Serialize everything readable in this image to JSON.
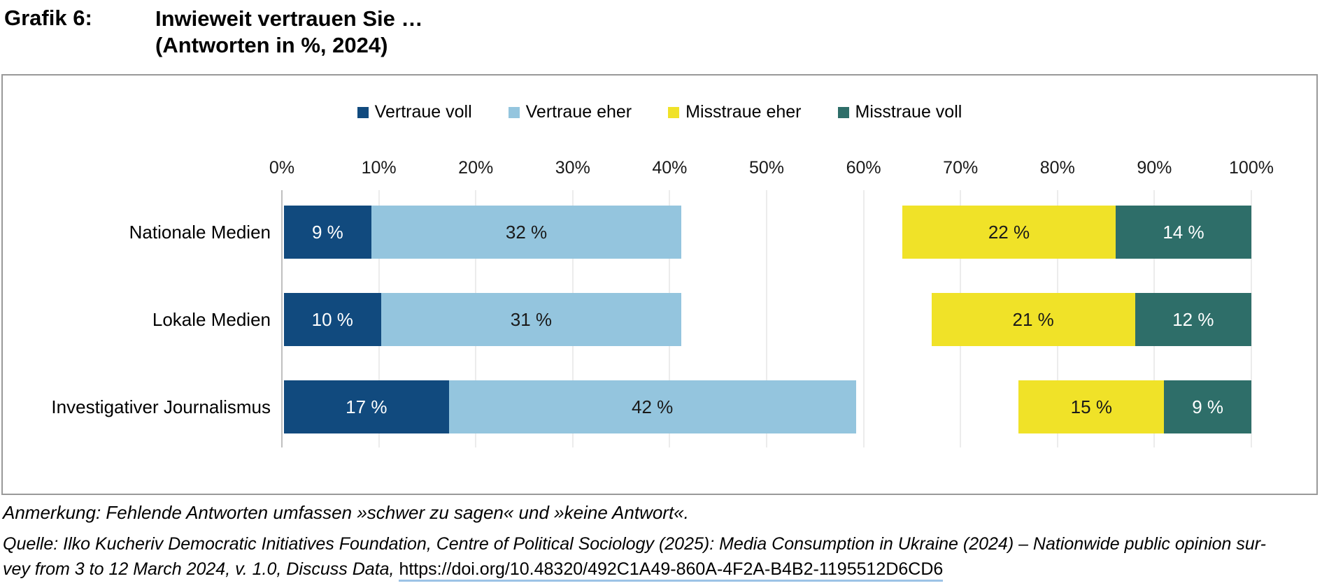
{
  "title": {
    "label": "Grafik 6:",
    "line1": "Inwieweit vertrauen Sie …",
    "line2": "(Antworten in %, 2024)"
  },
  "chart_data": {
    "type": "bar",
    "orientation": "horizontal-stacked",
    "title": "Inwieweit vertrauen Sie … (Antworten in %, 2024)",
    "categories": [
      "Nationale Medien",
      "Lokale Medien",
      "Investigativer Journalismus"
    ],
    "series": [
      {
        "name": "Vertraue voll",
        "color": "#114a7e",
        "text_color": "#ffffff",
        "align": "left",
        "values": [
          9,
          10,
          17
        ]
      },
      {
        "name": "Vertraue eher",
        "color": "#94c5de",
        "text_color": "#1a1a1a",
        "align": "left",
        "values": [
          32,
          31,
          42
        ]
      },
      {
        "name": "Misstraue eher",
        "color": "#f0e228",
        "text_color": "#1a1a1a",
        "align": "right",
        "values": [
          22,
          21,
          15
        ]
      },
      {
        "name": "Misstraue voll",
        "color": "#2e6e69",
        "text_color": "#ffffff",
        "align": "right",
        "values": [
          14,
          12,
          9
        ]
      }
    ],
    "value_suffix": " %",
    "x_ticks": [
      "0%",
      "10%",
      "20%",
      "30%",
      "40%",
      "50%",
      "60%",
      "70%",
      "80%",
      "90%",
      "100%"
    ],
    "xlim": [
      0,
      100
    ],
    "grid": true,
    "legend_position": "top-center"
  },
  "note": "Anmerkung: Fehlende Antworten umfassen »schwer zu sagen« und »keine Antwort«.",
  "source": {
    "line1": "Quelle: Ilko Kucheriv Democratic Initiatives Foundation, Centre of Political Sociology (2025): Media Consumption in Ukraine (2024) – Nationwide public opinion sur-",
    "line2_prefix": "vey from 3 to 12 March 2024, v. 1.0, Discuss Data, ",
    "link": "https://doi.org/10.48320/492C1A49-860A-4F2A-B4B2-1195512D6CD6"
  }
}
